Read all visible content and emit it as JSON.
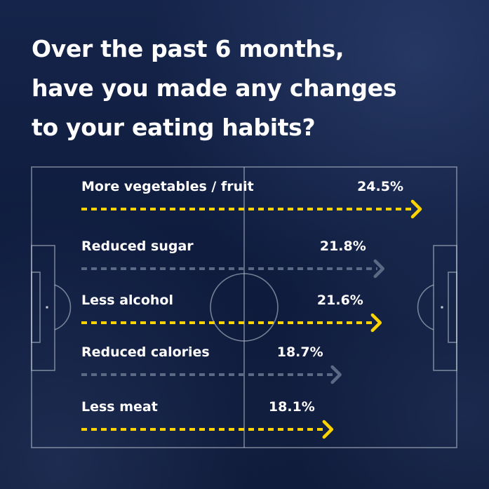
{
  "title_lines": [
    "Over the past 6 months,",
    "have you made any changes",
    "to your eating habits?"
  ],
  "colors": {
    "background": "#0f1c3e",
    "highlight": "#ffd400",
    "muted": "#5c6985",
    "pitch_lines": "#c9cfdb",
    "text": "#ffffff"
  },
  "chart_data": {
    "type": "bar",
    "orientation": "horizontal",
    "title": "Over the past 6 months, have you made any changes to your eating habits?",
    "unit": "%",
    "categories": [
      "More vegetables / fruit",
      "Reduced sugar",
      "Less alcohol",
      "Reduced calories",
      "Less meat"
    ],
    "values": [
      24.5,
      21.8,
      21.6,
      18.7,
      18.1
    ],
    "value_labels": [
      "24.5%",
      "21.8%",
      "21.6%",
      "18.7%",
      "18.1%"
    ],
    "bar_style": [
      "highlight",
      "muted",
      "highlight",
      "muted",
      "highlight"
    ],
    "xlabel": "",
    "ylabel": "",
    "grid": false,
    "legend": "none"
  }
}
